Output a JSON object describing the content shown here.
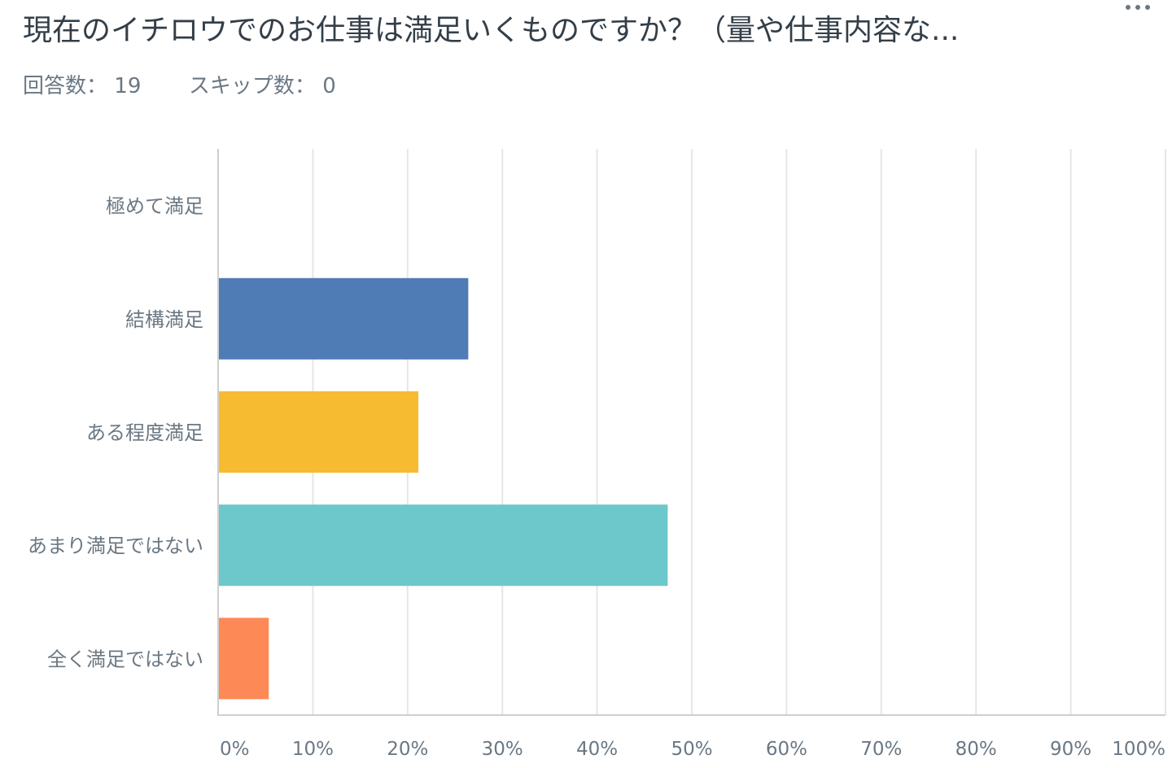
{
  "header": {
    "title": "現在のイチロウでのお仕事は満足いくものですか？（量や仕事内容な...",
    "more_icon": "more-horizontal-icon",
    "answered_label": "回答数：",
    "answered_count": "19",
    "skipped_label": "スキップ数：",
    "skipped_count": "0"
  },
  "colors": {
    "grid": "#e6e6e6",
    "axis": "#cfcfcf",
    "text": "#6b7883",
    "title": "#333e48"
  },
  "chart_data": {
    "type": "bar",
    "orientation": "horizontal",
    "categories": [
      "極めて満足",
      "結構満足",
      "ある程度満足",
      "あまり満足ではない",
      "全く満足ではない"
    ],
    "values": [
      0,
      26.32,
      21.05,
      47.37,
      5.26
    ],
    "colors": [
      "#507cb6",
      "#507cb6",
      "#f6bb31",
      "#6dc8cb",
      "#fd8956"
    ],
    "xlim": [
      0,
      100
    ],
    "ticks": [
      "0%",
      "10%",
      "20%",
      "30%",
      "40%",
      "50%",
      "60%",
      "70%",
      "80%",
      "90%",
      "100%"
    ],
    "unit": "%",
    "grid": true
  }
}
